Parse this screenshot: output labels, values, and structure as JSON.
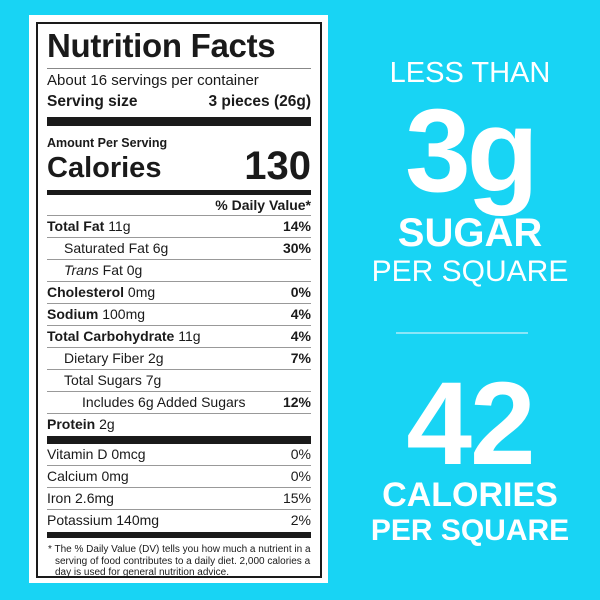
{
  "colors": {
    "background": "#18d4f4",
    "text": "#1a1a1a",
    "claims": "#ffffff"
  },
  "label": {
    "title": "Nutrition Facts",
    "servings": "About 16 servings per container",
    "serving_size_label": "Serving size",
    "serving_size_value": "3 pieces (26g)",
    "amount_per_serving": "Amount Per Serving",
    "calories_label": "Calories",
    "calories_value": "130",
    "dv_header": "% Daily Value*",
    "nutrients": [
      {
        "name": "Total Fat",
        "amount": "11g",
        "dv": "14%"
      },
      {
        "name": "Saturated Fat 6g",
        "amount": "",
        "dv": "30%"
      },
      {
        "name": "Trans",
        "amount": "Fat 0g",
        "dv": ""
      },
      {
        "name": "Cholesterol",
        "amount": "0mg",
        "dv": "0%"
      },
      {
        "name": "Sodium",
        "amount": "100mg",
        "dv": "4%"
      },
      {
        "name": "Total Carbohydrate",
        "amount": "11g",
        "dv": "4%"
      },
      {
        "name": "Dietary Fiber 2g",
        "amount": "",
        "dv": "7%"
      },
      {
        "name": "Total Sugars 7g",
        "amount": "",
        "dv": ""
      },
      {
        "name": "Includes 6g Added Sugars",
        "amount": "",
        "dv": "12%"
      },
      {
        "name": "Protein",
        "amount": "2g",
        "dv": ""
      }
    ],
    "vitamins": [
      {
        "name": "Vitamin D 0mcg",
        "dv": "0%"
      },
      {
        "name": "Calcium 0mg",
        "dv": "0%"
      },
      {
        "name": "Iron 2.6mg",
        "dv": "15%"
      },
      {
        "name": "Potassium 140mg",
        "dv": "2%"
      }
    ],
    "footnote": "* The % Daily Value (DV) tells you how much a nutrient in a serving of food contributes to a daily diet. 2,000 calories a day is used for general nutrition advice."
  },
  "claims": {
    "sugar_prefix": "LESS THAN",
    "sugar_value": "3g",
    "sugar_label": "SUGAR",
    "sugar_suffix": "PER SQUARE",
    "calories_value": "42",
    "calories_label": "CALORIES",
    "calories_suffix": "PER SQUARE"
  }
}
